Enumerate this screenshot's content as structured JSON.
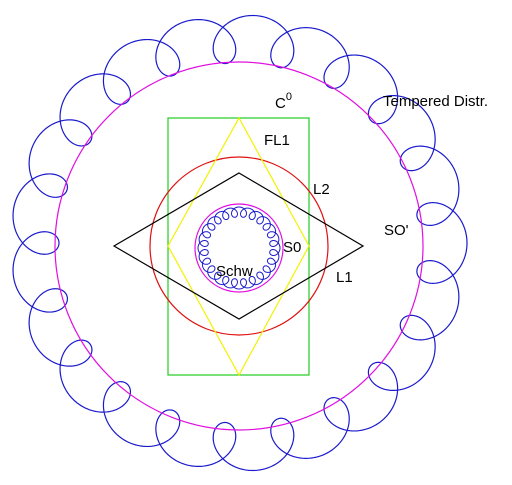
{
  "labels": {
    "c0_base": "C",
    "c0_sup": "0",
    "tempered": "Tempered Distr.",
    "fl1": "FL1",
    "l2": "L2",
    "so_prime": "SO'",
    "s0": "S0",
    "l1": "L1",
    "schw": "Schw"
  },
  "colors": {
    "outer_loops": "#1a1acc",
    "magenta": "#e010e0",
    "green": "#22cc22",
    "red": "#e01010",
    "yellow": "#f2f200",
    "black": "#000000",
    "inner_loops": "#1a1acc"
  }
}
